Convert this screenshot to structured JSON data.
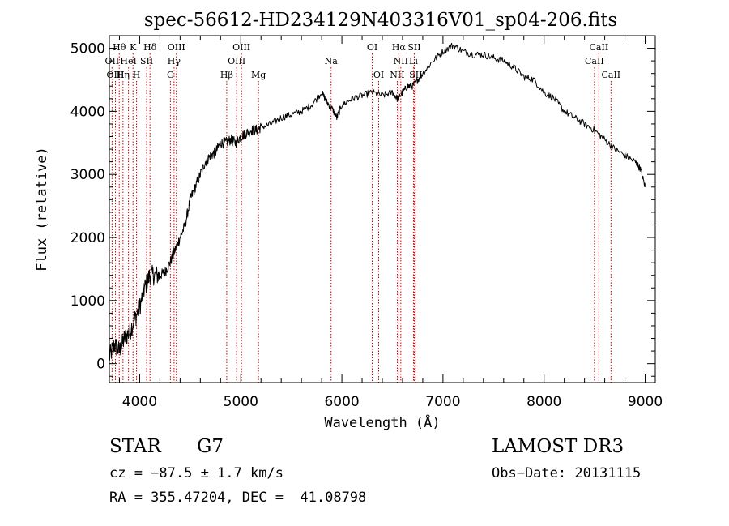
{
  "chart_data": {
    "type": "line",
    "title": "spec-56612-HD234129N403316V01_sp04-206.fits",
    "xlabel": "Wavelength (Å)",
    "ylabel": "Flux (relative)",
    "xlim": [
      3700,
      9100
    ],
    "ylim": [
      -300,
      5200
    ],
    "xticks": [
      4000,
      5000,
      6000,
      7000,
      8000,
      9000
    ],
    "yticks": [
      0,
      1000,
      2000,
      3000,
      4000,
      5000
    ],
    "series": [
      {
        "name": "flux",
        "x": [
          3700,
          3750,
          3800,
          3850,
          3900,
          3950,
          4000,
          4050,
          4100,
          4150,
          4200,
          4250,
          4300,
          4350,
          4400,
          4450,
          4500,
          4550,
          4600,
          4650,
          4700,
          4750,
          4800,
          4850,
          4900,
          4950,
          5000,
          5050,
          5100,
          5150,
          5200,
          5300,
          5400,
          5500,
          5600,
          5700,
          5800,
          5850,
          5900,
          5950,
          6000,
          6100,
          6200,
          6300,
          6400,
          6500,
          6550,
          6600,
          6650,
          6700,
          6750,
          6800,
          6900,
          7000,
          7100,
          7200,
          7300,
          7400,
          7500,
          7600,
          7700,
          7800,
          7900,
          8000,
          8100,
          8200,
          8300,
          8400,
          8500,
          8600,
          8700,
          8800,
          8900,
          8950,
          9000
        ],
        "y": [
          100,
          300,
          200,
          400,
          500,
          700,
          900,
          1200,
          1400,
          1400,
          1400,
          1450,
          1600,
          1800,
          2000,
          2200,
          2600,
          2800,
          3000,
          3200,
          3300,
          3350,
          3500,
          3500,
          3550,
          3500,
          3600,
          3650,
          3700,
          3700,
          3750,
          3800,
          3900,
          3950,
          4000,
          4100,
          4300,
          4150,
          4050,
          3900,
          4100,
          4200,
          4250,
          4300,
          4250,
          4300,
          4200,
          4300,
          4400,
          4400,
          4500,
          4600,
          4800,
          4950,
          5050,
          4950,
          4900,
          4900,
          4850,
          4800,
          4700,
          4550,
          4500,
          4300,
          4200,
          4000,
          3900,
          3800,
          3700,
          3550,
          3400,
          3300,
          3200,
          3100,
          2800
        ]
      }
    ],
    "line_markers": [
      {
        "label": "Hθ",
        "x": 3798,
        "row": 0
      },
      {
        "label": "OII",
        "x": 3727,
        "row": 1
      },
      {
        "label": "OIII",
        "x": 3760,
        "row": 2
      },
      {
        "label": "K",
        "x": 3934,
        "row": 0
      },
      {
        "label": "HeI",
        "x": 3889,
        "row": 1
      },
      {
        "label": "Hη",
        "x": 3835,
        "row": 2
      },
      {
        "label": "SII",
        "x": 4069,
        "row": 1
      },
      {
        "label": "H",
        "x": 3969,
        "row": 2
      },
      {
        "label": "Hδ",
        "x": 4102,
        "row": 0
      },
      {
        "label": "OIII",
        "x": 4363,
        "row": 0
      },
      {
        "label": "Hγ",
        "x": 4340,
        "row": 1
      },
      {
        "label": "G",
        "x": 4304,
        "row": 2
      },
      {
        "label": "Hβ",
        "x": 4861,
        "row": 2
      },
      {
        "label": "OIII",
        "x": 5007,
        "row": 0
      },
      {
        "label": "OIII",
        "x": 4959,
        "row": 1
      },
      {
        "label": "Mg",
        "x": 5175,
        "row": 2
      },
      {
        "label": "Na",
        "x": 5893,
        "row": 1
      },
      {
        "label": "OI",
        "x": 6300,
        "row": 0
      },
      {
        "label": "OI",
        "x": 6364,
        "row": 2
      },
      {
        "label": "Hα",
        "x": 6563,
        "row": 0
      },
      {
        "label": "SII",
        "x": 6716,
        "row": 0
      },
      {
        "label": "NII",
        "x": 6583,
        "row": 1
      },
      {
        "label": "Li",
        "x": 6708,
        "row": 1
      },
      {
        "label": "NII",
        "x": 6548,
        "row": 2
      },
      {
        "label": "SII",
        "x": 6731,
        "row": 2
      },
      {
        "label": "CaII",
        "x": 8542,
        "row": 0
      },
      {
        "label": "CaII",
        "x": 8498,
        "row": 1
      },
      {
        "label": "CaII",
        "x": 8662,
        "row": 2
      }
    ]
  },
  "info": {
    "class": "STAR",
    "subclass": "G7",
    "survey": "LAMOST DR3",
    "cz": "cz = −87.5 ± 1.7 km/s",
    "obs_date": "Obs−Date: 20131115",
    "coords": "RA = 355.47204, DEC =  41.08798"
  },
  "colors": {
    "marker": "#cc0000",
    "line": "#000000"
  }
}
